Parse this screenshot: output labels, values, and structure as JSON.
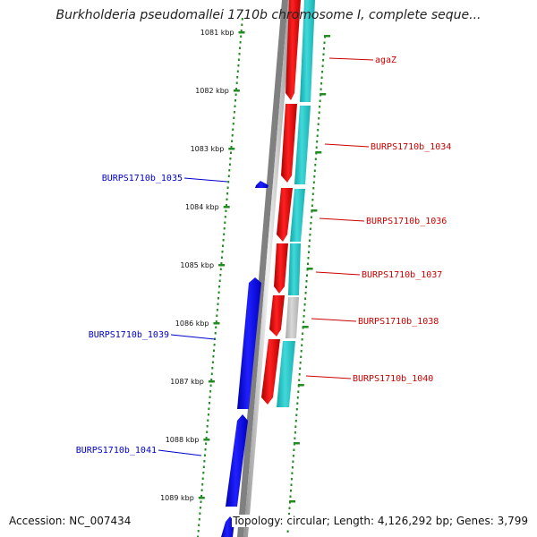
{
  "title": "Burkholderia pseudomallei 1710b chromosome I, complete seque...",
  "footer": {
    "accession": "Accession: NC_007434",
    "summary": "Topology: circular; Length: 4,126,292 bp; Genes: 3,799"
  },
  "colors": {
    "reverse_strand": "#0000ff",
    "forward_strand": "#ff0000",
    "cds": "#33cccc",
    "other_feature": "#c8c8c8",
    "backbone": "#808080",
    "tick": "#228b22"
  },
  "scale": {
    "unit": "kbp",
    "labels": [
      "1081 kbp",
      "1082 kbp",
      "1083 kbp",
      "1084 kbp",
      "1085 kbp",
      "1086 kbp",
      "1087 kbp",
      "1088 kbp",
      "1089 kbp"
    ]
  },
  "genes": {
    "forward": [
      {
        "name": "agaZ"
      },
      {
        "name": "BURPS1710b_1034"
      },
      {
        "name": "BURPS1710b_1036"
      },
      {
        "name": "BURPS1710b_1037"
      },
      {
        "name": "BURPS1710b_1038"
      },
      {
        "name": "BURPS1710b_1040"
      }
    ],
    "reverse": [
      {
        "name": "BURPS1710b_1035"
      },
      {
        "name": "BURPS1710b_1039"
      },
      {
        "name": "BURPS1710b_1041"
      }
    ]
  }
}
